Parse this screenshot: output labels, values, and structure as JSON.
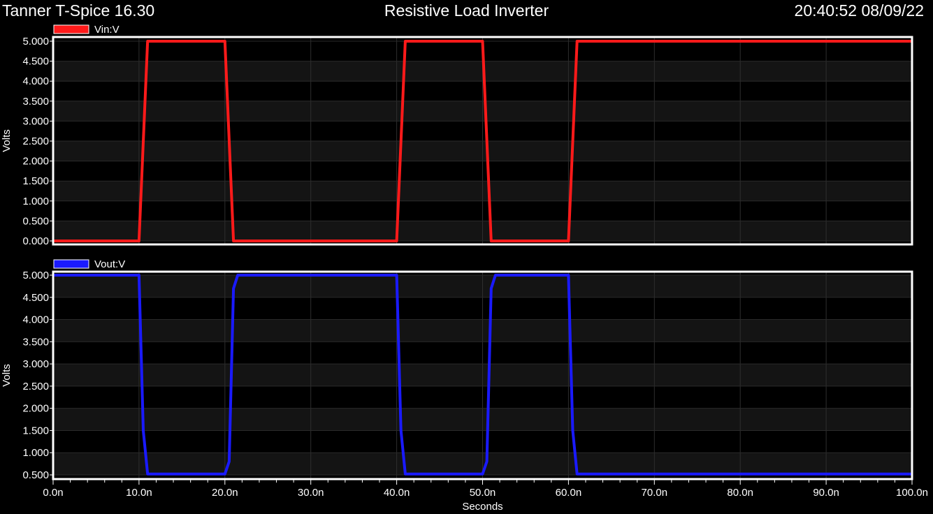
{
  "header": {
    "app_title": "Tanner T-Spice 16.30",
    "chart_title": "Resistive Load Inverter",
    "timestamp": "20:40:52 08/09/22"
  },
  "x_axis": {
    "label": "Seconds",
    "ticks": [
      "0.0n",
      "10.0n",
      "20.0n",
      "30.0n",
      "40.0n",
      "50.0n",
      "60.0n",
      "70.0n",
      "80.0n",
      "90.0n",
      "100.0n"
    ]
  },
  "chart_data": [
    {
      "type": "line",
      "legend": "Vin:V",
      "color": "#ff1a1a",
      "ylabel": "Volts",
      "xlim": [
        0,
        100
      ],
      "ylim": [
        0,
        5
      ],
      "yticks": [
        "0.000",
        "0.500",
        "1.000",
        "1.500",
        "2.000",
        "2.500",
        "3.000",
        "3.500",
        "4.000",
        "4.500",
        "5.000"
      ],
      "ytick_values": [
        0,
        0.5,
        1,
        1.5,
        2,
        2.5,
        3,
        3.5,
        4,
        4.5,
        5
      ],
      "x": [
        0,
        10,
        11,
        20,
        21,
        40,
        41,
        50,
        51,
        60,
        61,
        100
      ],
      "y": [
        0,
        0,
        5,
        5,
        0,
        0,
        5,
        5,
        0,
        0,
        5,
        5
      ]
    },
    {
      "type": "line",
      "legend": "Vout:V",
      "color": "#1a1aff",
      "ylabel": "Volts",
      "xlim": [
        0,
        100
      ],
      "ylim": [
        0.5,
        5
      ],
      "yticks": [
        "0.500",
        "1.000",
        "1.500",
        "2.000",
        "2.500",
        "3.000",
        "3.500",
        "4.000",
        "4.500",
        "5.000"
      ],
      "ytick_values": [
        0.5,
        1,
        1.5,
        2,
        2.5,
        3,
        3.5,
        4,
        4.5,
        5
      ],
      "x": [
        0,
        10,
        10.5,
        11,
        20,
        20.5,
        21,
        21.5,
        40,
        40.5,
        41,
        50,
        50.5,
        51,
        51.5,
        60,
        60.5,
        61,
        100
      ],
      "y": [
        5,
        5,
        1.5,
        0.52,
        0.52,
        0.8,
        4.7,
        5,
        5,
        1.5,
        0.52,
        0.52,
        0.8,
        4.7,
        5,
        5,
        1.5,
        0.52,
        0.52
      ]
    }
  ]
}
